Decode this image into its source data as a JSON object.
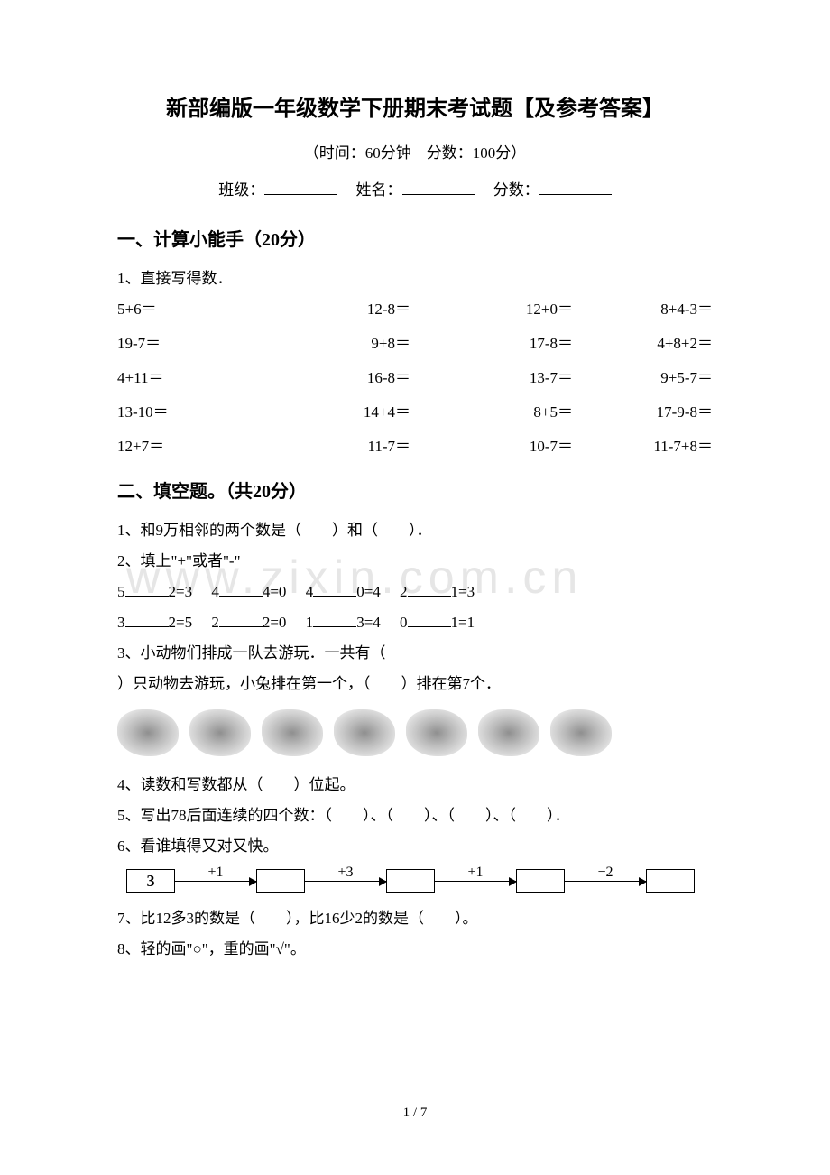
{
  "title": "新部编版一年级数学下册期末考试题【及参考答案】",
  "subtitle": "（时间：60分钟　分数：100分）",
  "info": {
    "class_label": "班级：",
    "name_label": "姓名：",
    "score_label": "分数："
  },
  "section1": {
    "header": "一、计算小能手（20分）",
    "q1": "1、直接写得数．",
    "rows": [
      [
        "5+6＝",
        "12-8＝",
        "12+0＝",
        "8+4-3＝"
      ],
      [
        "19-7＝",
        "9+8＝",
        "17-8＝",
        "4+8+2＝"
      ],
      [
        "4+11＝",
        "16-8＝",
        "13-7＝",
        "9+5-7＝"
      ],
      [
        "13-10＝",
        "14+4＝",
        "8+5＝",
        "17-9-8＝"
      ],
      [
        "12+7＝",
        "11-7＝",
        "10-7＝",
        "11-7+8＝"
      ]
    ]
  },
  "section2": {
    "header": "二、填空题。（共20分）",
    "q1": "1、和9万相邻的两个数是（　　）和（　　）．",
    "q2": "2、填上\"+\"或者\"-\"",
    "q2_row1": [
      {
        "a": "5",
        "b": "2=3"
      },
      {
        "a": "4",
        "b": "4=0"
      },
      {
        "a": "4",
        "b": "0=4"
      },
      {
        "a": "2",
        "b": "1=3"
      }
    ],
    "q2_row2": [
      {
        "a": "3",
        "b": "2=5"
      },
      {
        "a": "2",
        "b": "2=0"
      },
      {
        "a": "1",
        "b": "3=4"
      },
      {
        "a": "0",
        "b": "1=1"
      }
    ],
    "q3a": "3、小动物们排成一队去游玩．一共有（",
    "q3b": "）只动物去游玩，小兔排在第一个，（　　）排在第7个．",
    "q4": "4、读数和写数都从（　　）位起。",
    "q5": "5、写出78后面连续的四个数：（　　）、（　　）、（　　）、（　　）．",
    "q6": "6、看谁填得又对又快。",
    "flow": {
      "start": "3",
      "ops": [
        "+1",
        "+3",
        "+1",
        "−2"
      ]
    },
    "q7": "7、比12多3的数是（　　），比16少2的数是（　　）。",
    "q8": "8、轻的画\"○\"，重的画\"√\"。"
  },
  "watermark": "www.zixin.com.cn",
  "page_number": "1 / 7"
}
